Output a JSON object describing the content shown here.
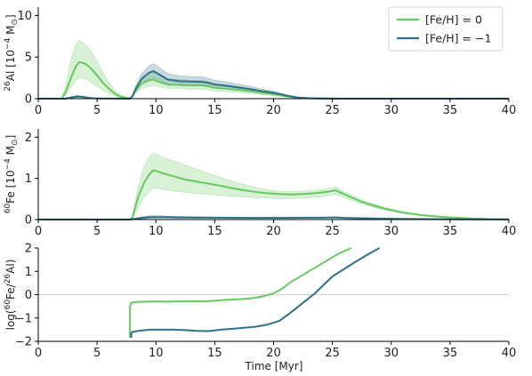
{
  "chart_data": {
    "type": "line",
    "colors": {
      "solar": "#66c95f",
      "subsolar": "#2e7186"
    },
    "legend": {
      "position": "top-right",
      "entries": [
        "[Fe/H] = 0",
        "[Fe/H] = −1"
      ]
    },
    "xlabel": "Time [Myr]",
    "xlim": [
      0,
      40
    ],
    "xticks": [
      0,
      5,
      10,
      15,
      20,
      25,
      30,
      35,
      40
    ],
    "panels": [
      {
        "id": "al26",
        "ylabel_html": "<tspan font-size='9' dy='-5'>26</tspan><tspan dy='5'>Al [10</tspan><tspan font-size='9' dy='-5'>−4</tspan><tspan dy='5'> M</tspan><tspan font-size='9' dy='3'>⊙</tspan><tspan dy='-3'>]</tspan>",
        "ylim": [
          0,
          11
        ],
        "yticks": [
          0,
          5,
          10
        ],
        "series": [
          {
            "key": "solar",
            "x": [
              0,
              2.0,
              2.4,
              2.8,
              3.2,
              3.5,
              4.0,
              4.5,
              5.0,
              5.5,
              6.0,
              6.5,
              7.0,
              7.5,
              7.9,
              8.0,
              8.3,
              8.8,
              9.4,
              9.8,
              10.3,
              11.0,
              12.0,
              13.0,
              14.0,
              14.3,
              15.0,
              16.0,
              17.0,
              18.0,
              19.0,
              20.0,
              21.0,
              22.0,
              23.0,
              24.0,
              26.0,
              40
            ],
            "y": [
              0,
              0,
              1.0,
              2.6,
              3.9,
              4.4,
              4.2,
              3.6,
              2.8,
              1.9,
              1.2,
              0.6,
              0.25,
              0.1,
              0.05,
              0.3,
              1.0,
              1.8,
              2.2,
              2.3,
              2.0,
              1.7,
              1.65,
              1.6,
              1.6,
              1.55,
              1.3,
              1.2,
              1.05,
              0.9,
              0.7,
              0.55,
              0.3,
              0.12,
              0.05,
              0.02,
              0,
              0
            ],
            "lower": [
              0,
              0,
              0.6,
              1.4,
              2.2,
              2.6,
              2.4,
              2.0,
              1.5,
              1.0,
              0.6,
              0.3,
              0.1,
              0.05,
              0.02,
              0.2,
              0.7,
              1.2,
              1.5,
              1.6,
              1.4,
              1.25,
              1.2,
              1.15,
              1.15,
              1.1,
              0.9,
              0.85,
              0.75,
              0.62,
              0.5,
              0.38,
              0.2,
              0.08,
              0.03,
              0.01,
              0,
              0
            ],
            "upper": [
              0,
              0,
              1.8,
              4.8,
              6.6,
              7.0,
              6.5,
              5.7,
              4.5,
              3.1,
              2.0,
              1.0,
              0.45,
              0.2,
              0.1,
              0.5,
              1.4,
              2.5,
              3.1,
              3.2,
              2.8,
              2.4,
              2.3,
              2.2,
              2.2,
              2.1,
              1.8,
              1.65,
              1.45,
              1.25,
              1.0,
              0.8,
              0.45,
              0.18,
              0.08,
              0.03,
              0,
              0
            ]
          },
          {
            "key": "subsolar",
            "x": [
              0,
              2.3,
              2.8,
              3.3,
              3.8,
              4.3,
              5.0,
              7.8,
              8.0,
              8.3,
              8.8,
              9.4,
              9.8,
              10.3,
              11.0,
              12.0,
              13.0,
              14.0,
              14.3,
              15.0,
              16.0,
              17.0,
              18.0,
              19.0,
              20.0,
              21.0,
              22.0,
              23.0,
              24.0,
              26.0,
              40
            ],
            "y": [
              0,
              0,
              0.15,
              0.25,
              0.2,
              0.1,
              0.02,
              0,
              0.3,
              1.2,
              2.4,
              3.1,
              3.3,
              2.9,
              2.3,
              2.1,
              2.05,
              2.0,
              1.95,
              1.7,
              1.55,
              1.35,
              1.15,
              0.9,
              0.7,
              0.4,
              0.15,
              0.06,
              0.02,
              0,
              0
            ],
            "lower": [
              0,
              0,
              0.08,
              0.15,
              0.12,
              0.05,
              0.01,
              0,
              0.2,
              0.9,
              1.8,
              2.4,
              2.5,
              2.2,
              1.8,
              1.6,
              1.55,
              1.5,
              1.45,
              1.3,
              1.2,
              1.05,
              0.9,
              0.7,
              0.55,
              0.3,
              0.1,
              0.04,
              0.01,
              0,
              0
            ],
            "upper": [
              0,
              0,
              0.25,
              0.4,
              0.32,
              0.16,
              0.04,
              0,
              0.45,
              1.6,
              3.0,
              3.9,
              4.2,
              3.7,
              3.0,
              2.75,
              2.65,
              2.6,
              2.5,
              2.2,
              2.0,
              1.75,
              1.5,
              1.15,
              0.9,
              0.5,
              0.2,
              0.08,
              0.03,
              0,
              0
            ]
          }
        ]
      },
      {
        "id": "fe60",
        "ylabel_html": "<tspan font-size='9' dy='-5'>60</tspan><tspan dy='5'>Fe [10</tspan><tspan font-size='9' dy='-5'>−4</tspan><tspan dy='5'> M</tspan><tspan font-size='9' dy='3'>⊙</tspan><tspan dy='-3'>]</tspan>",
        "ylim": [
          0,
          2.2
        ],
        "yticks": [
          0,
          1,
          2
        ],
        "series": [
          {
            "key": "solar",
            "x": [
              0,
              7.8,
              8.0,
              8.5,
              9.0,
              9.5,
              9.8,
              10.5,
              11.5,
              12.5,
              13.5,
              14.5,
              15.5,
              16.5,
              17.5,
              18.5,
              19.5,
              20.5,
              21.5,
              22.5,
              23.5,
              24.5,
              25.3,
              25.8,
              26.5,
              27.5,
              28.5,
              29.5,
              31.0,
              32.5,
              34.0,
              35.5,
              37.0,
              38.5,
              40.0
            ],
            "y": [
              0,
              0,
              0.05,
              0.55,
              0.9,
              1.12,
              1.2,
              1.13,
              1.05,
              0.97,
              0.92,
              0.87,
              0.82,
              0.76,
              0.71,
              0.67,
              0.64,
              0.62,
              0.61,
              0.62,
              0.64,
              0.67,
              0.71,
              0.64,
              0.55,
              0.43,
              0.34,
              0.26,
              0.17,
              0.11,
              0.07,
              0.045,
              0.025,
              0.012,
              0.005
            ],
            "lower": [
              0,
              0,
              0.03,
              0.3,
              0.55,
              0.7,
              0.78,
              0.74,
              0.7,
              0.66,
              0.63,
              0.61,
              0.59,
              0.57,
              0.55,
              0.53,
              0.52,
              0.51,
              0.51,
              0.52,
              0.54,
              0.57,
              0.61,
              0.56,
              0.48,
              0.38,
              0.3,
              0.23,
              0.15,
              0.1,
              0.06,
              0.04,
              0.02,
              0.01,
              0.004
            ],
            "upper": [
              0,
              0,
              0.08,
              0.8,
              1.3,
              1.55,
              1.62,
              1.52,
              1.42,
              1.32,
              1.22,
              1.12,
              1.02,
              0.93,
              0.85,
              0.78,
              0.72,
              0.69,
              0.68,
              0.69,
              0.71,
              0.74,
              0.79,
              0.71,
              0.6,
              0.48,
              0.38,
              0.29,
              0.19,
              0.12,
              0.08,
              0.05,
              0.028,
              0.014,
              0.006
            ]
          },
          {
            "key": "subsolar",
            "x": [
              0,
              7.8,
              8.5,
              9.5,
              10.5,
              12,
              15,
              18,
              21,
              24,
              25.3,
              26,
              28,
              30,
              33,
              36,
              40
            ],
            "y": [
              0,
              0,
              0.03,
              0.06,
              0.06,
              0.05,
              0.045,
              0.04,
              0.04,
              0.045,
              0.05,
              0.04,
              0.03,
              0.02,
              0.012,
              0.006,
              0.002
            ],
            "lower": [
              0,
              0,
              0.015,
              0.03,
              0.035,
              0.03,
              0.03,
              0.028,
              0.028,
              0.032,
              0.036,
              0.03,
              0.022,
              0.015,
              0.009,
              0.004,
              0.001
            ],
            "upper": [
              0,
              0,
              0.05,
              0.09,
              0.09,
              0.075,
              0.062,
              0.055,
              0.055,
              0.06,
              0.065,
              0.052,
              0.04,
              0.027,
              0.016,
              0.008,
              0.003
            ]
          }
        ]
      },
      {
        "id": "ratio",
        "ylabel_html": "<tspan>log(</tspan><tspan font-size='9' dy='-5'>60</tspan><tspan dy='5'>Fe/</tspan><tspan font-size='9' dy='-5'>26</tspan><tspan dy='5'>Al)</tspan>",
        "ylim": [
          -2,
          2
        ],
        "yticks": [
          -2,
          -1,
          0,
          1,
          2
        ],
        "zero_line": true,
        "series": [
          {
            "key": "solar",
            "x": [
              7.8,
              7.8,
              7.9,
              8.2,
              9.0,
              10.0,
              11.0,
              12.0,
              13.0,
              14.0,
              15.0,
              16.0,
              17.0,
              18.0,
              19.0,
              20.0,
              20.7,
              21.5,
              22.5,
              23.5,
              24.5,
              25.5,
              26.6
            ],
            "y": [
              -1.85,
              -0.5,
              -0.35,
              -0.32,
              -0.3,
              -0.29,
              -0.3,
              -0.29,
              -0.28,
              -0.29,
              -0.26,
              -0.22,
              -0.2,
              -0.16,
              -0.08,
              0.05,
              0.25,
              0.55,
              0.85,
              1.15,
              1.45,
              1.75,
              2.0
            ]
          },
          {
            "key": "subsolar",
            "x": [
              7.9,
              7.9,
              8.0,
              8.5,
              9.5,
              10.5,
              11.5,
              12.5,
              13.5,
              14.5,
              15.5,
              16.5,
              17.5,
              18.5,
              19.5,
              20.5,
              21.5,
              22.5,
              23.5,
              25.0,
              26.0,
              27.0,
              28.0,
              29.0
            ],
            "y": [
              -1.85,
              -1.65,
              -1.6,
              -1.55,
              -1.5,
              -1.5,
              -1.5,
              -1.52,
              -1.55,
              -1.56,
              -1.5,
              -1.46,
              -1.42,
              -1.37,
              -1.28,
              -1.12,
              -0.75,
              -0.35,
              0.05,
              0.78,
              1.1,
              1.42,
              1.72,
              2.0
            ]
          }
        ]
      }
    ]
  }
}
